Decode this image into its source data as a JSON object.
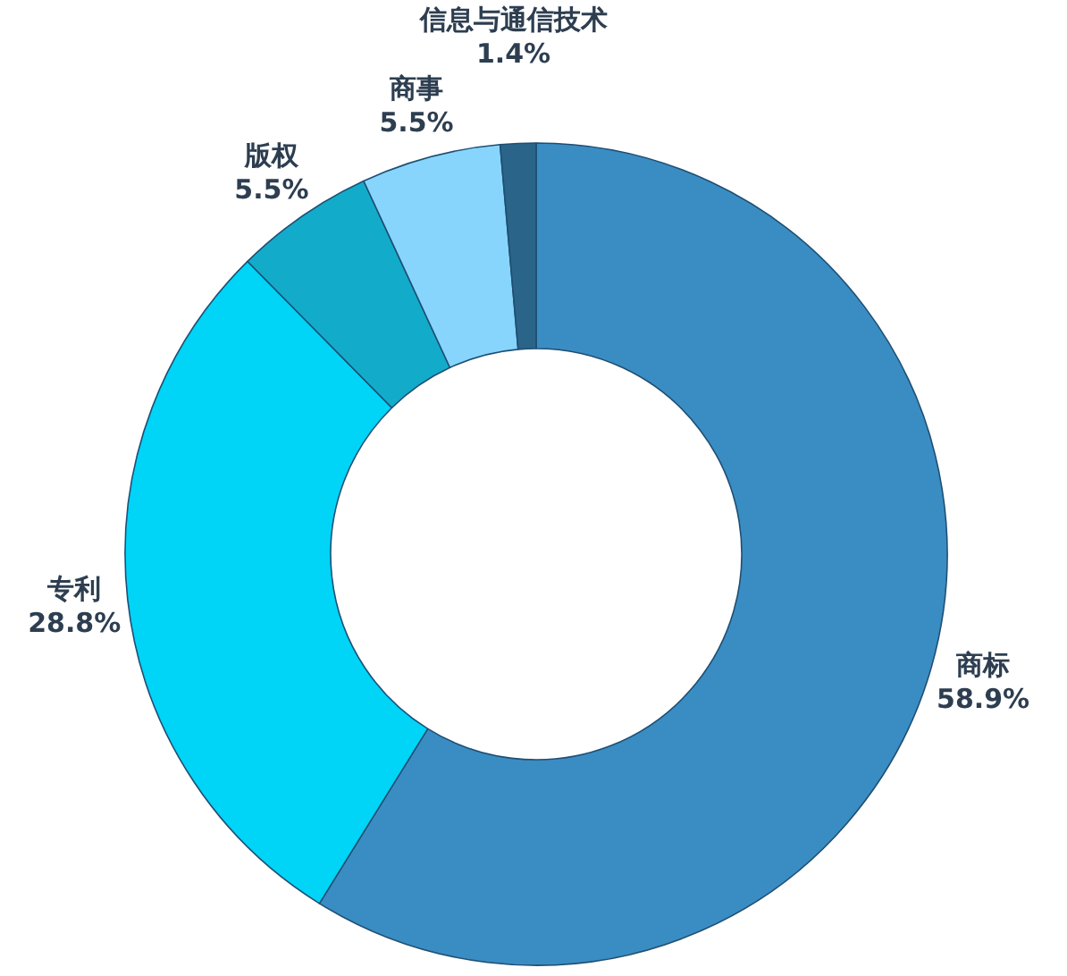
{
  "chart_data": {
    "type": "donut",
    "categories": [
      "商标",
      "专利",
      "版权",
      "商事",
      "信息与通信技术"
    ],
    "values": [
      58.9,
      28.8,
      5.5,
      5.5,
      1.4
    ],
    "value_labels": [
      "58.9%",
      "28.8%",
      "5.5%",
      "5.5%",
      "1.4%"
    ],
    "colors": [
      "#3a8dc3",
      "#00d4f7",
      "#12acca",
      "#87d5fc",
      "#2b6489"
    ],
    "legend": false
  }
}
